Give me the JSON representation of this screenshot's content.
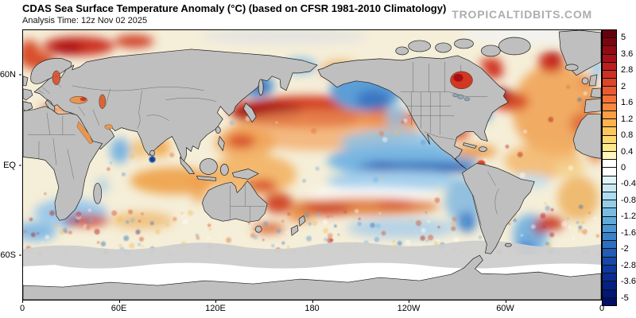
{
  "header": {
    "title": "CDAS Sea Surface Temperature Anomaly (°C) (based on CFSR 1981-2010 Climatology)",
    "analysis_time": "Analysis Time: 12z Nov 02 2025",
    "watermark": "TROPICALTIDBITS.COM"
  },
  "map": {
    "x_ticks": [
      "0",
      "60E",
      "120E",
      "180",
      "120W",
      "60W",
      "0"
    ],
    "y_ticks": [
      "60N",
      "EQ",
      "60S"
    ],
    "land_color": "#bfbfbf",
    "coast_color": "#1f1f1f",
    "sea_ice_color": "#cdcdcd",
    "polar_white": "#ffffff",
    "notable_anomalies": [
      "Strong warm anomaly band across the central North Pacific (30-45N)",
      "Cool La Nina-like tongue along the central/eastern equatorial Pacific",
      "Cool pool in the Gulf of Alaska / northeast Pacific",
      "Broad warm anomalies across the North Atlantic with a dark-red patch south of Nova Scotia and a cool strip off the US East Coast",
      "Warm anomalies in the Barents Sea, Hudson Bay, Labrador Sea and northwest Pacific (Kuroshio)",
      "Cool southeast Pacific and Argentine shelf; warm eddy bands across the Southern Ocean",
      "Gray shading over land and polar sea-ice zones"
    ]
  },
  "colorbar": {
    "tick_labels": [
      "5",
      "3.6",
      "2.8",
      "2",
      "1.6",
      "1.2",
      "0.8",
      "0.4",
      "0",
      "-0.4",
      "-0.8",
      "-1.2",
      "-1.6",
      "-2",
      "-2.8",
      "-3.6",
      "-5"
    ],
    "segment_colors": [
      "#67000d",
      "#7c040f",
      "#920a13",
      "#a81119",
      "#bc1f1e",
      "#cd3124",
      "#dc452a",
      "#e95a30",
      "#f37136",
      "#f9883d",
      "#fc9e45",
      "#fdb34e",
      "#fdc75c",
      "#fdd970",
      "#fee98c",
      "#fff7bc",
      "#ffffff",
      "#ffffff",
      "#dff3f8",
      "#c8e9f4",
      "#aedcf0",
      "#93cdea",
      "#79bce3",
      "#60aadb",
      "#4b97d3",
      "#3a83ca",
      "#2c70c0",
      "#215cb5",
      "#1849aa",
      "#10399e",
      "#0a2c91",
      "#052083",
      "#031775",
      "#020f67"
    ]
  }
}
